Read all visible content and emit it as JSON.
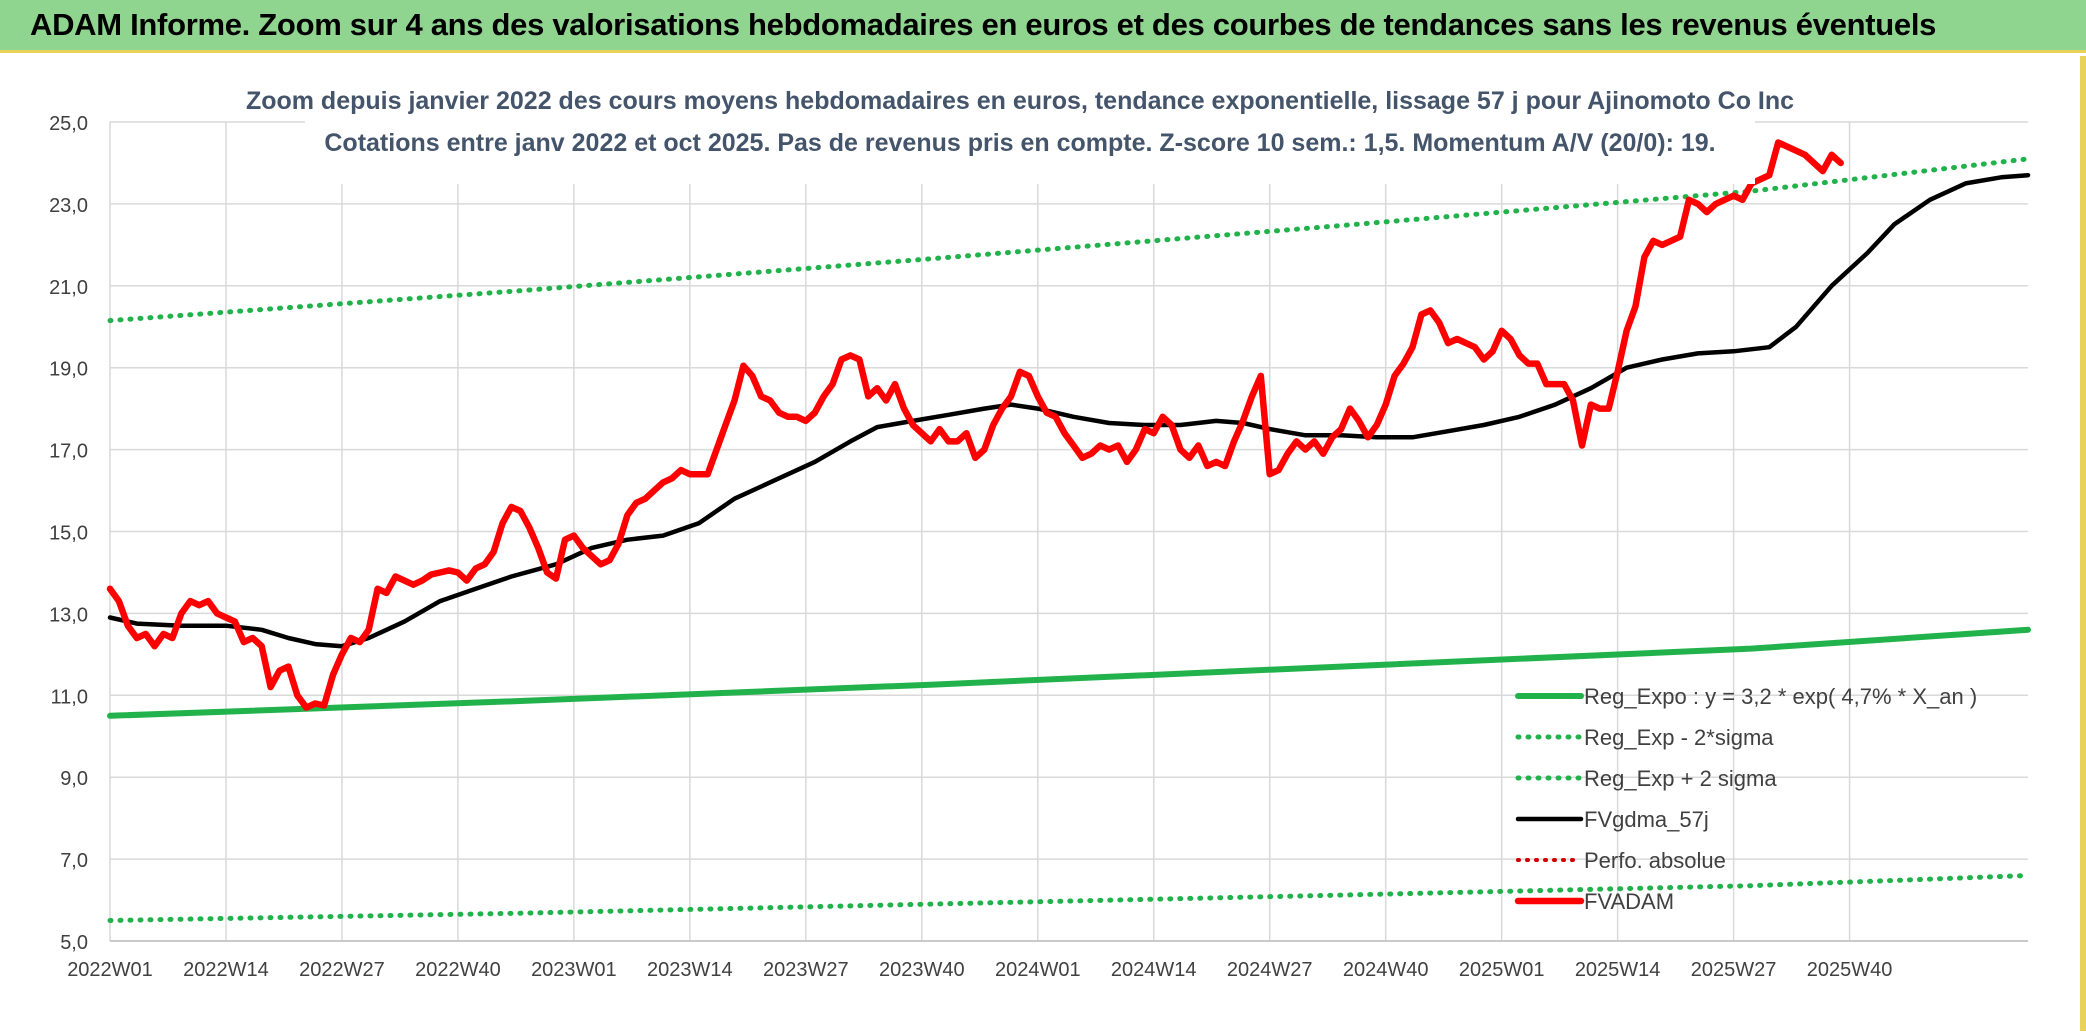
{
  "header": {
    "title": "ADAM Informe. Zoom sur 4 ans des valorisations hebdomadaires en euros et des courbes de tendances sans les revenus éventuels"
  },
  "colors": {
    "header_bg": "#8fd48f",
    "reg_green": "#22b24c",
    "fv_black": "#000000",
    "fvadam_red": "#ff0000",
    "perfo_red": "#d40000"
  },
  "chart_data": {
    "type": "line",
    "title": "Zoom depuis janvier 2022 des cours moyens hebdomadaires en euros, tendance exponentielle, lissage 57 j pour Ajinomoto Co Inc",
    "subtitle": "Cotations entre janv 2022 et oct 2025. Pas de revenus pris en compte. Z-score 10 sem.: 1,5. Momentum A/V (20/0): 19.",
    "ylim": [
      5.0,
      25.0
    ],
    "yticks": [
      "5,0",
      "7,0",
      "9,0",
      "11,0",
      "13,0",
      "15,0",
      "17,0",
      "19,0",
      "21,0",
      "23,0",
      "25,0"
    ],
    "xticks": [
      "2022W01",
      "2022W14",
      "2022W27",
      "2022W40",
      "2023W01",
      "2023W14",
      "2023W27",
      "2023W40",
      "2024W01",
      "2024W14",
      "2024W27",
      "2024W40",
      "2025W01",
      "2025W14",
      "2025W27",
      "2025W40"
    ],
    "grid": true,
    "legend_position": "bottom-right",
    "legend": [
      "Reg_Expo : y = 3,2 * exp( 4,7% *  X_an )",
      "Reg_Exp - 2*sigma",
      "Reg_Exp + 2 sigma",
      "FVgdma_57j",
      "Perfo. absolue",
      "FVADAM"
    ],
    "series": [
      {
        "name": "Reg_Expo : y = 3,2 * exp( 4,7% *  X_an )",
        "style": "solid-green",
        "points": [
          [
            0,
            10.5
          ],
          [
            40,
            10.86
          ],
          [
            80,
            11.26
          ],
          [
            120,
            11.7
          ],
          [
            160,
            12.14
          ],
          [
            187,
            12.6
          ]
        ]
      },
      {
        "name": "Reg_Exp - 2*sigma",
        "style": "dotted-green",
        "points": [
          [
            0,
            5.5
          ],
          [
            40,
            5.68
          ],
          [
            80,
            5.9
          ],
          [
            120,
            6.12
          ],
          [
            160,
            6.35
          ],
          [
            187,
            6.6
          ]
        ]
      },
      {
        "name": "Reg_Exp + 2 sigma",
        "style": "dotted-green",
        "points": [
          [
            0,
            20.15
          ],
          [
            40,
            20.88
          ],
          [
            80,
            21.66
          ],
          [
            120,
            22.47
          ],
          [
            160,
            23.31
          ],
          [
            187,
            24.1
          ]
        ]
      },
      {
        "name": "FVgdma_57j",
        "style": "solid-black",
        "points": [
          [
            0,
            12.9
          ],
          [
            3,
            12.75
          ],
          [
            8,
            12.7
          ],
          [
            13,
            12.7
          ],
          [
            17,
            12.6
          ],
          [
            20,
            12.4
          ],
          [
            23,
            12.25
          ],
          [
            26,
            12.2
          ],
          [
            29,
            12.4
          ],
          [
            33,
            12.8
          ],
          [
            37,
            13.3
          ],
          [
            41,
            13.6
          ],
          [
            45,
            13.9
          ],
          [
            50,
            14.2
          ],
          [
            54,
            14.6
          ],
          [
            58,
            14.8
          ],
          [
            62,
            14.9
          ],
          [
            66,
            15.2
          ],
          [
            70,
            15.8
          ],
          [
            73,
            16.1
          ],
          [
            76,
            16.4
          ],
          [
            79,
            16.7
          ],
          [
            83,
            17.2
          ],
          [
            86,
            17.55
          ],
          [
            90,
            17.7
          ],
          [
            94,
            17.85
          ],
          [
            98,
            18.0
          ],
          [
            101,
            18.1
          ],
          [
            104,
            18.0
          ],
          [
            108,
            17.8
          ],
          [
            112,
            17.65
          ],
          [
            116,
            17.6
          ],
          [
            120,
            17.6
          ],
          [
            124,
            17.7
          ],
          [
            127,
            17.65
          ],
          [
            130,
            17.5
          ],
          [
            134,
            17.35
          ],
          [
            138,
            17.35
          ],
          [
            142,
            17.3
          ],
          [
            146,
            17.3
          ],
          [
            150,
            17.45
          ],
          [
            154,
            17.6
          ],
          [
            158,
            17.8
          ],
          [
            162,
            18.1
          ],
          [
            166,
            18.5
          ],
          [
            170,
            19.0
          ],
          [
            174,
            19.2
          ],
          [
            178,
            19.35
          ],
          [
            182,
            19.4
          ],
          [
            186,
            19.5
          ],
          [
            189,
            20.0
          ],
          [
            193,
            21.0
          ],
          [
            197,
            21.8
          ],
          [
            200,
            22.5
          ],
          [
            204,
            23.1
          ],
          [
            208,
            23.5
          ],
          [
            212,
            23.65
          ],
          [
            215,
            23.7
          ]
        ]
      },
      {
        "name": "Perfo. absolue",
        "style": "dotted-red",
        "points": []
      },
      {
        "name": "FVADAM",
        "style": "solid-red",
        "points": [
          [
            0,
            13.6
          ],
          [
            1,
            13.3
          ],
          [
            2,
            12.7
          ],
          [
            3,
            12.4
          ],
          [
            4,
            12.5
          ],
          [
            5,
            12.2
          ],
          [
            6,
            12.5
          ],
          [
            7,
            12.4
          ],
          [
            8,
            13.0
          ],
          [
            9,
            13.3
          ],
          [
            10,
            13.2
          ],
          [
            11,
            13.3
          ],
          [
            12,
            13.0
          ],
          [
            13,
            12.9
          ],
          [
            14,
            12.8
          ],
          [
            15,
            12.3
          ],
          [
            16,
            12.4
          ],
          [
            17,
            12.2
          ],
          [
            18,
            11.2
          ],
          [
            19,
            11.6
          ],
          [
            20,
            11.7
          ],
          [
            21,
            11.0
          ],
          [
            22,
            10.7
          ],
          [
            23,
            10.8
          ],
          [
            24,
            10.75
          ],
          [
            25,
            11.5
          ],
          [
            26,
            12.0
          ],
          [
            27,
            12.4
          ],
          [
            28,
            12.3
          ],
          [
            29,
            12.6
          ],
          [
            30,
            13.6
          ],
          [
            31,
            13.5
          ],
          [
            32,
            13.9
          ],
          [
            33,
            13.8
          ],
          [
            34,
            13.7
          ],
          [
            35,
            13.8
          ],
          [
            36,
            13.95
          ],
          [
            37,
            14.0
          ],
          [
            38,
            14.05
          ],
          [
            39,
            14.0
          ],
          [
            40,
            13.8
          ],
          [
            41,
            14.1
          ],
          [
            42,
            14.2
          ],
          [
            43,
            14.5
          ],
          [
            44,
            15.2
          ],
          [
            45,
            15.6
          ],
          [
            46,
            15.5
          ],
          [
            47,
            15.1
          ],
          [
            48,
            14.6
          ],
          [
            49,
            14.0
          ],
          [
            50,
            13.85
          ],
          [
            51,
            14.8
          ],
          [
            52,
            14.9
          ],
          [
            53,
            14.6
          ],
          [
            54,
            14.4
          ],
          [
            55,
            14.2
          ],
          [
            56,
            14.3
          ],
          [
            57,
            14.7
          ],
          [
            58,
            15.4
          ],
          [
            59,
            15.7
          ],
          [
            60,
            15.8
          ],
          [
            61,
            16.0
          ],
          [
            62,
            16.2
          ],
          [
            63,
            16.3
          ],
          [
            64,
            16.5
          ],
          [
            65,
            16.4
          ],
          [
            66,
            16.4
          ],
          [
            67,
            16.4
          ],
          [
            68,
            17.0
          ],
          [
            69,
            17.6
          ],
          [
            70,
            18.2
          ],
          [
            71,
            19.05
          ],
          [
            72,
            18.8
          ],
          [
            73,
            18.3
          ],
          [
            74,
            18.2
          ],
          [
            75,
            17.9
          ],
          [
            76,
            17.8
          ],
          [
            77,
            17.8
          ],
          [
            78,
            17.7
          ],
          [
            79,
            17.9
          ],
          [
            80,
            18.3
          ],
          [
            81,
            18.6
          ],
          [
            82,
            19.2
          ],
          [
            83,
            19.3
          ],
          [
            84,
            19.2
          ],
          [
            85,
            18.3
          ],
          [
            86,
            18.5
          ],
          [
            87,
            18.2
          ],
          [
            88,
            18.6
          ],
          [
            89,
            18.0
          ],
          [
            90,
            17.6
          ],
          [
            91,
            17.4
          ],
          [
            92,
            17.2
          ],
          [
            93,
            17.5
          ],
          [
            94,
            17.2
          ],
          [
            95,
            17.2
          ],
          [
            96,
            17.4
          ],
          [
            97,
            16.8
          ],
          [
            98,
            17.0
          ],
          [
            99,
            17.6
          ],
          [
            100,
            18.0
          ],
          [
            101,
            18.3
          ],
          [
            102,
            18.9
          ],
          [
            103,
            18.8
          ],
          [
            104,
            18.3
          ],
          [
            105,
            17.9
          ],
          [
            106,
            17.8
          ],
          [
            107,
            17.4
          ],
          [
            108,
            17.1
          ],
          [
            109,
            16.8
          ],
          [
            110,
            16.9
          ],
          [
            111,
            17.1
          ],
          [
            112,
            17.0
          ],
          [
            113,
            17.1
          ],
          [
            114,
            16.7
          ],
          [
            115,
            17.0
          ],
          [
            116,
            17.5
          ],
          [
            117,
            17.4
          ],
          [
            118,
            17.8
          ],
          [
            119,
            17.6
          ],
          [
            120,
            17.0
          ],
          [
            121,
            16.8
          ],
          [
            122,
            17.1
          ],
          [
            123,
            16.6
          ],
          [
            124,
            16.7
          ],
          [
            125,
            16.6
          ],
          [
            126,
            17.2
          ],
          [
            127,
            17.7
          ],
          [
            128,
            18.3
          ],
          [
            129,
            18.8
          ],
          [
            130,
            16.4
          ],
          [
            131,
            16.5
          ],
          [
            132,
            16.9
          ],
          [
            133,
            17.2
          ],
          [
            134,
            17.0
          ],
          [
            135,
            17.2
          ],
          [
            136,
            16.9
          ],
          [
            137,
            17.3
          ],
          [
            138,
            17.5
          ],
          [
            139,
            18.0
          ],
          [
            140,
            17.7
          ],
          [
            141,
            17.3
          ],
          [
            142,
            17.6
          ],
          [
            143,
            18.1
          ],
          [
            144,
            18.8
          ],
          [
            145,
            19.1
          ],
          [
            146,
            19.5
          ],
          [
            147,
            20.3
          ],
          [
            148,
            20.4
          ],
          [
            149,
            20.1
          ],
          [
            150,
            19.6
          ],
          [
            151,
            19.7
          ],
          [
            152,
            19.6
          ],
          [
            153,
            19.5
          ],
          [
            154,
            19.2
          ],
          [
            155,
            19.4
          ],
          [
            156,
            19.9
          ],
          [
            157,
            19.7
          ],
          [
            158,
            19.3
          ],
          [
            159,
            19.1
          ],
          [
            160,
            19.1
          ],
          [
            161,
            18.6
          ],
          [
            162,
            18.6
          ],
          [
            163,
            18.6
          ],
          [
            164,
            18.2
          ],
          [
            165,
            17.1
          ],
          [
            166,
            18.1
          ],
          [
            167,
            18.0
          ],
          [
            168,
            18.0
          ],
          [
            169,
            18.9
          ],
          [
            170,
            19.9
          ],
          [
            171,
            20.5
          ],
          [
            172,
            21.7
          ],
          [
            173,
            22.1
          ],
          [
            174,
            22.0
          ],
          [
            175,
            22.1
          ],
          [
            176,
            22.2
          ],
          [
            177,
            23.1
          ],
          [
            178,
            23.0
          ],
          [
            179,
            22.8
          ],
          [
            180,
            23.0
          ],
          [
            181,
            23.1
          ],
          [
            182,
            23.2
          ],
          [
            183,
            23.1
          ],
          [
            184,
            23.5
          ],
          [
            185,
            23.6
          ],
          [
            186,
            23.7
          ],
          [
            187,
            24.5
          ],
          [
            188,
            24.4
          ],
          [
            189,
            24.3
          ],
          [
            190,
            24.2
          ],
          [
            191,
            24.0
          ],
          [
            192,
            23.8
          ],
          [
            193,
            24.2
          ],
          [
            194,
            24.0
          ]
        ]
      }
    ]
  }
}
